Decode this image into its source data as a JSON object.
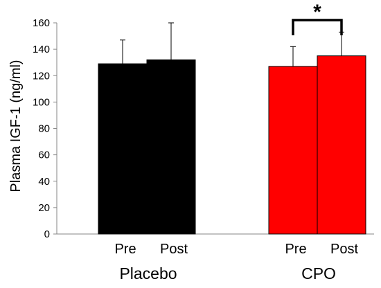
{
  "chart_data": {
    "type": "bar",
    "title": "",
    "xlabel": "",
    "ylabel": "Plasma IGF-1 (ng/ml)",
    "ylim": [
      0,
      160
    ],
    "yticks": [
      0,
      20,
      40,
      60,
      80,
      100,
      120,
      140,
      160
    ],
    "grid": false,
    "legend": "none",
    "groups": [
      {
        "name": "Placebo",
        "color": "#000000",
        "bars": [
          {
            "label": "Pre",
            "value": 129,
            "error": 18
          },
          {
            "label": "Post",
            "value": 132,
            "error": 28
          }
        ]
      },
      {
        "name": "CPO",
        "color": "#ff0000",
        "bars": [
          {
            "label": "Pre",
            "value": 127,
            "error": 15
          },
          {
            "label": "Post",
            "value": 135,
            "error": 18
          }
        ]
      }
    ],
    "annotations": [
      {
        "text": "*",
        "group": "CPO",
        "meaning": "significant Pre vs Post"
      }
    ]
  }
}
